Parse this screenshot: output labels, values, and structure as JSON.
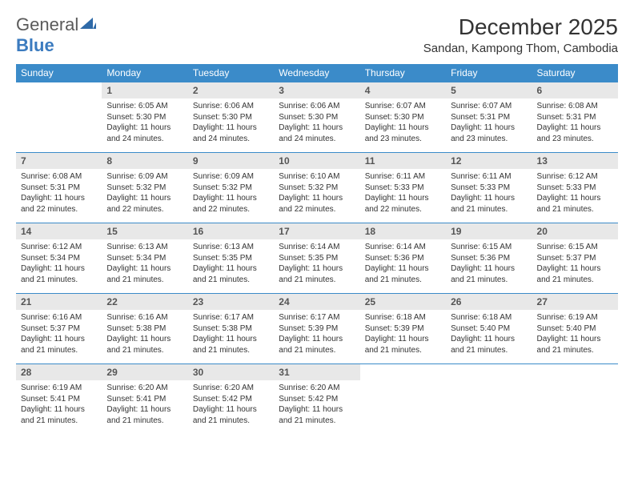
{
  "logo": {
    "text1": "General",
    "text2": "Blue"
  },
  "title": "December 2025",
  "location": "Sandan, Kampong Thom, Cambodia",
  "colors": {
    "header_bg": "#3b8bc9",
    "header_text": "#ffffff",
    "daynum_bg": "#e8e8e8",
    "border_color": "#3b8bc9",
    "body_text": "#333333",
    "logo_gray": "#5a5a5a",
    "logo_blue": "#3b7bbf",
    "page_bg": "#ffffff"
  },
  "typography": {
    "title_fontsize": 28,
    "location_fontsize": 15,
    "th_fontsize": 12,
    "daynum_fontsize": 12,
    "body_fontsize": 10
  },
  "daysOfWeek": [
    "Sunday",
    "Monday",
    "Tuesday",
    "Wednesday",
    "Thursday",
    "Friday",
    "Saturday"
  ],
  "weeks": [
    [
      {
        "n": "",
        "sunrise": "",
        "sunset": "",
        "daylight": ""
      },
      {
        "n": "1",
        "sunrise": "Sunrise: 6:05 AM",
        "sunset": "Sunset: 5:30 PM",
        "daylight": "Daylight: 11 hours and 24 minutes."
      },
      {
        "n": "2",
        "sunrise": "Sunrise: 6:06 AM",
        "sunset": "Sunset: 5:30 PM",
        "daylight": "Daylight: 11 hours and 24 minutes."
      },
      {
        "n": "3",
        "sunrise": "Sunrise: 6:06 AM",
        "sunset": "Sunset: 5:30 PM",
        "daylight": "Daylight: 11 hours and 24 minutes."
      },
      {
        "n": "4",
        "sunrise": "Sunrise: 6:07 AM",
        "sunset": "Sunset: 5:30 PM",
        "daylight": "Daylight: 11 hours and 23 minutes."
      },
      {
        "n": "5",
        "sunrise": "Sunrise: 6:07 AM",
        "sunset": "Sunset: 5:31 PM",
        "daylight": "Daylight: 11 hours and 23 minutes."
      },
      {
        "n": "6",
        "sunrise": "Sunrise: 6:08 AM",
        "sunset": "Sunset: 5:31 PM",
        "daylight": "Daylight: 11 hours and 23 minutes."
      }
    ],
    [
      {
        "n": "7",
        "sunrise": "Sunrise: 6:08 AM",
        "sunset": "Sunset: 5:31 PM",
        "daylight": "Daylight: 11 hours and 22 minutes."
      },
      {
        "n": "8",
        "sunrise": "Sunrise: 6:09 AM",
        "sunset": "Sunset: 5:32 PM",
        "daylight": "Daylight: 11 hours and 22 minutes."
      },
      {
        "n": "9",
        "sunrise": "Sunrise: 6:09 AM",
        "sunset": "Sunset: 5:32 PM",
        "daylight": "Daylight: 11 hours and 22 minutes."
      },
      {
        "n": "10",
        "sunrise": "Sunrise: 6:10 AM",
        "sunset": "Sunset: 5:32 PM",
        "daylight": "Daylight: 11 hours and 22 minutes."
      },
      {
        "n": "11",
        "sunrise": "Sunrise: 6:11 AM",
        "sunset": "Sunset: 5:33 PM",
        "daylight": "Daylight: 11 hours and 22 minutes."
      },
      {
        "n": "12",
        "sunrise": "Sunrise: 6:11 AM",
        "sunset": "Sunset: 5:33 PM",
        "daylight": "Daylight: 11 hours and 21 minutes."
      },
      {
        "n": "13",
        "sunrise": "Sunrise: 6:12 AM",
        "sunset": "Sunset: 5:33 PM",
        "daylight": "Daylight: 11 hours and 21 minutes."
      }
    ],
    [
      {
        "n": "14",
        "sunrise": "Sunrise: 6:12 AM",
        "sunset": "Sunset: 5:34 PM",
        "daylight": "Daylight: 11 hours and 21 minutes."
      },
      {
        "n": "15",
        "sunrise": "Sunrise: 6:13 AM",
        "sunset": "Sunset: 5:34 PM",
        "daylight": "Daylight: 11 hours and 21 minutes."
      },
      {
        "n": "16",
        "sunrise": "Sunrise: 6:13 AM",
        "sunset": "Sunset: 5:35 PM",
        "daylight": "Daylight: 11 hours and 21 minutes."
      },
      {
        "n": "17",
        "sunrise": "Sunrise: 6:14 AM",
        "sunset": "Sunset: 5:35 PM",
        "daylight": "Daylight: 11 hours and 21 minutes."
      },
      {
        "n": "18",
        "sunrise": "Sunrise: 6:14 AM",
        "sunset": "Sunset: 5:36 PM",
        "daylight": "Daylight: 11 hours and 21 minutes."
      },
      {
        "n": "19",
        "sunrise": "Sunrise: 6:15 AM",
        "sunset": "Sunset: 5:36 PM",
        "daylight": "Daylight: 11 hours and 21 minutes."
      },
      {
        "n": "20",
        "sunrise": "Sunrise: 6:15 AM",
        "sunset": "Sunset: 5:37 PM",
        "daylight": "Daylight: 11 hours and 21 minutes."
      }
    ],
    [
      {
        "n": "21",
        "sunrise": "Sunrise: 6:16 AM",
        "sunset": "Sunset: 5:37 PM",
        "daylight": "Daylight: 11 hours and 21 minutes."
      },
      {
        "n": "22",
        "sunrise": "Sunrise: 6:16 AM",
        "sunset": "Sunset: 5:38 PM",
        "daylight": "Daylight: 11 hours and 21 minutes."
      },
      {
        "n": "23",
        "sunrise": "Sunrise: 6:17 AM",
        "sunset": "Sunset: 5:38 PM",
        "daylight": "Daylight: 11 hours and 21 minutes."
      },
      {
        "n": "24",
        "sunrise": "Sunrise: 6:17 AM",
        "sunset": "Sunset: 5:39 PM",
        "daylight": "Daylight: 11 hours and 21 minutes."
      },
      {
        "n": "25",
        "sunrise": "Sunrise: 6:18 AM",
        "sunset": "Sunset: 5:39 PM",
        "daylight": "Daylight: 11 hours and 21 minutes."
      },
      {
        "n": "26",
        "sunrise": "Sunrise: 6:18 AM",
        "sunset": "Sunset: 5:40 PM",
        "daylight": "Daylight: 11 hours and 21 minutes."
      },
      {
        "n": "27",
        "sunrise": "Sunrise: 6:19 AM",
        "sunset": "Sunset: 5:40 PM",
        "daylight": "Daylight: 11 hours and 21 minutes."
      }
    ],
    [
      {
        "n": "28",
        "sunrise": "Sunrise: 6:19 AM",
        "sunset": "Sunset: 5:41 PM",
        "daylight": "Daylight: 11 hours and 21 minutes."
      },
      {
        "n": "29",
        "sunrise": "Sunrise: 6:20 AM",
        "sunset": "Sunset: 5:41 PM",
        "daylight": "Daylight: 11 hours and 21 minutes."
      },
      {
        "n": "30",
        "sunrise": "Sunrise: 6:20 AM",
        "sunset": "Sunset: 5:42 PM",
        "daylight": "Daylight: 11 hours and 21 minutes."
      },
      {
        "n": "31",
        "sunrise": "Sunrise: 6:20 AM",
        "sunset": "Sunset: 5:42 PM",
        "daylight": "Daylight: 11 hours and 21 minutes."
      },
      {
        "n": "",
        "sunrise": "",
        "sunset": "",
        "daylight": ""
      },
      {
        "n": "",
        "sunrise": "",
        "sunset": "",
        "daylight": ""
      },
      {
        "n": "",
        "sunrise": "",
        "sunset": "",
        "daylight": ""
      }
    ]
  ]
}
